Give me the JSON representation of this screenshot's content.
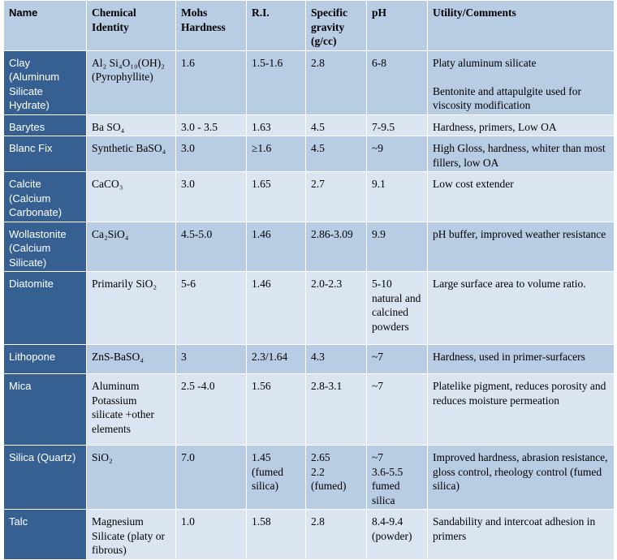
{
  "table": {
    "header": [
      "Name",
      "Chemical Identity",
      "Mohs Hardness",
      "R.I.",
      "Specific gravity (g/cc)",
      "pH",
      "Utility/Comments"
    ],
    "rows": [
      [
        "Clay (Aluminum Silicate Hydrate)",
        "Al₂ Si₄O₁₀(OH)₂ (Pyrophyllite)",
        "1.6",
        "1.5-1.6",
        "2.8",
        "6-8",
        [
          "Platy aluminum silicate",
          "Bentonite and attapulgite used for viscosity modification"
        ]
      ],
      [
        "Barytes",
        "Ba SO₄",
        "3.0 - 3.5",
        "1.63",
        "4.5",
        "7-9.5",
        "Hardness, primers, Low OA"
      ],
      [
        "Blanc Fix",
        "Synthetic BaSO₄",
        "3.0",
        "≥1.6",
        "4.5",
        "~9",
        "High Gloss, hardness, whiter than most fillers, low OA"
      ],
      [
        "Calcite (Calcium Carbonate)",
        "CaCO₃",
        "3.0",
        "1.65",
        "2.7",
        "9.1",
        "Low cost extender"
      ],
      [
        "Wollastonite (Calcium Silicate)",
        "Ca₂SiO₄",
        "4.5-5.0",
        "1.46",
        "2.86-3.09",
        "9.9",
        "pH buffer, improved weather resistance"
      ],
      [
        "Diatomite",
        "Primarily SiO₂",
        "5-6",
        "1.46",
        "2.0-2.3",
        "5-10 natural and calcined powders",
        "Large surface area to volume ratio."
      ],
      [
        "Lithopone",
        "ZnS-BaSO₄",
        "3",
        "2.3/1.64",
        "4.3",
        "~7",
        "Hardness, used in primer-surfacers"
      ],
      [
        "Mica",
        "Aluminum Potassium silicate +other elements",
        "2.5 -4.0",
        "1.56",
        "2.8-3.1",
        "~7",
        "Platelike pigment, reduces porosity and reduces moisture permeation"
      ],
      [
        "Silica (Quartz)",
        "SiO₂",
        "7.0",
        [
          "1.45",
          "(fumed silica)"
        ],
        [
          "2.65",
          "2.2",
          "(fumed)"
        ],
        [
          "~7",
          "3.6-5.5",
          "fumed silica"
        ],
        "Improved hardness, abrasion resistance, gloss control, rheology control (fumed silica)"
      ],
      [
        "Talc",
        "Magnesium Silicate (platy or fibrous)",
        "1.0",
        "1.58",
        "2.8",
        "8.4-9.4 (powder)",
        "Sandability and intercoat adhesion in primers"
      ]
    ]
  }
}
